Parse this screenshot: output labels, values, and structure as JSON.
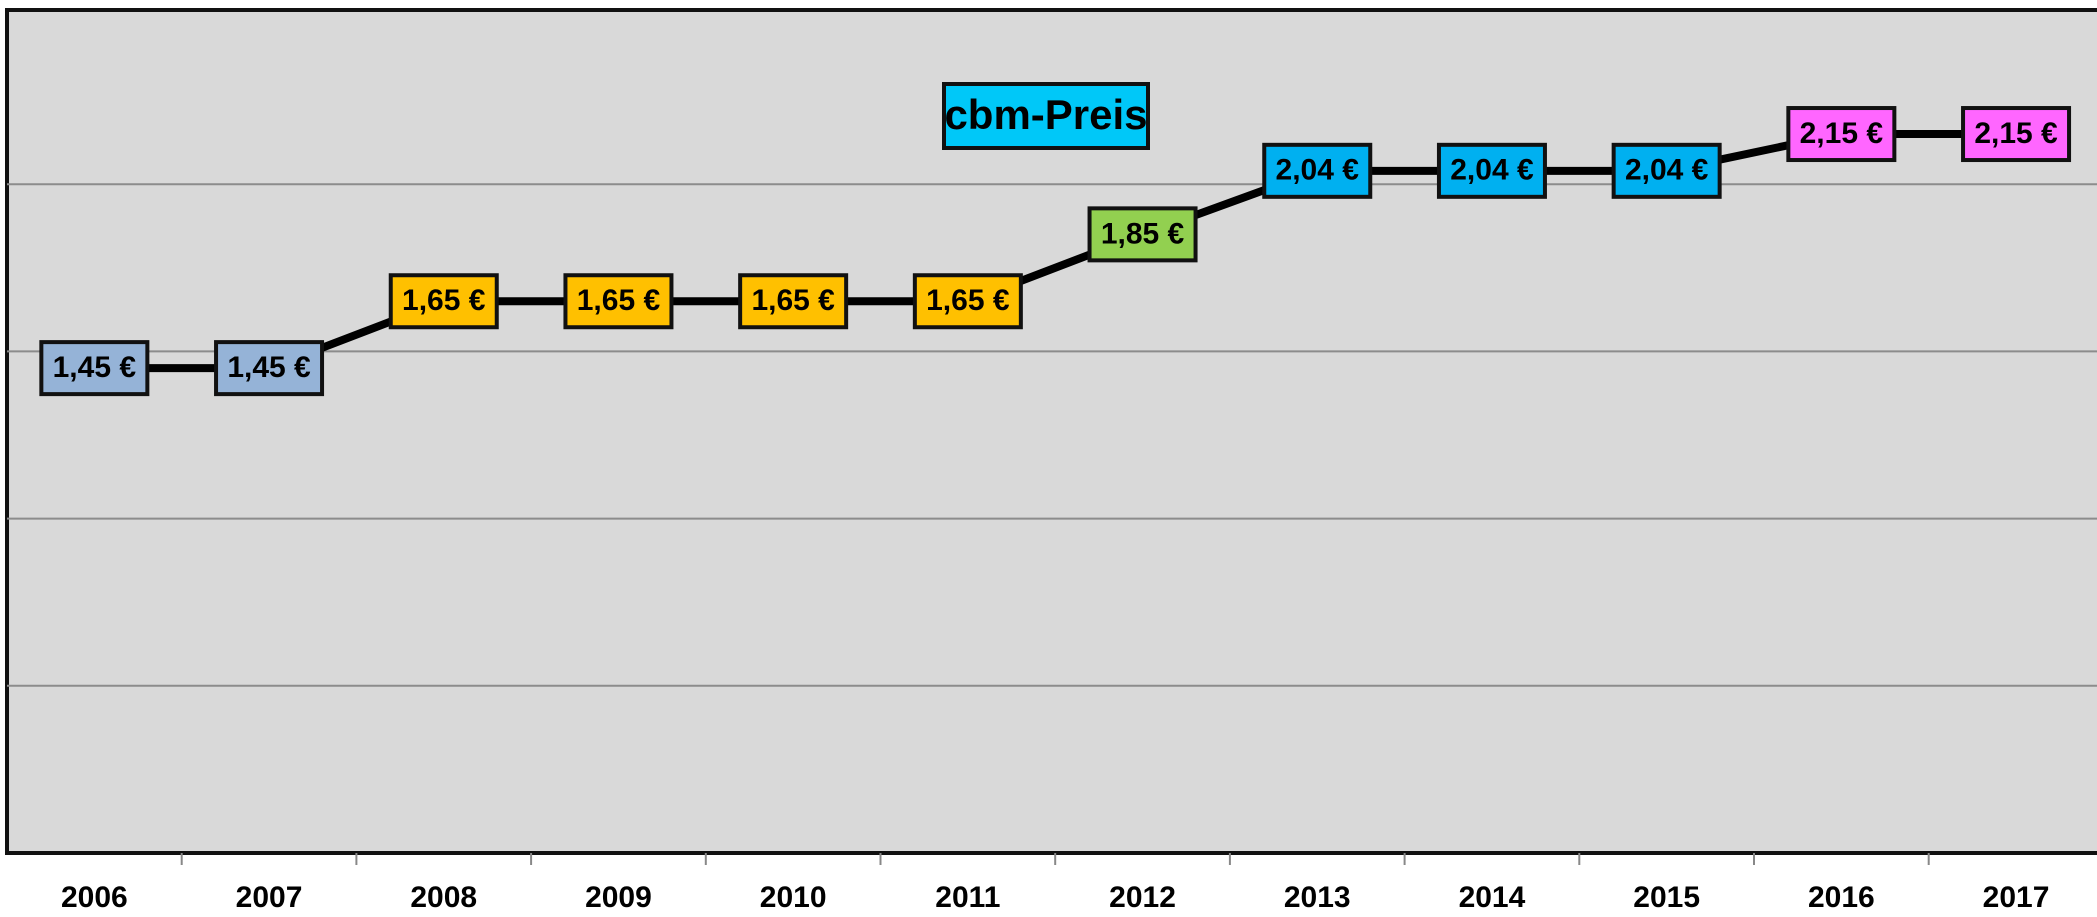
{
  "chart_data": {
    "type": "line",
    "title": "cbm-Preis",
    "title_color": "#00c8f8",
    "categories": [
      "2006",
      "2007",
      "2008",
      "2009",
      "2010",
      "2011",
      "2012",
      "2013",
      "2014",
      "2015",
      "2016",
      "2017"
    ],
    "series": [
      {
        "name": "cbm-Preis",
        "color": "#000000",
        "values": [
          1.45,
          1.45,
          1.65,
          1.65,
          1.65,
          1.65,
          1.85,
          2.04,
          2.04,
          2.04,
          2.15,
          2.15
        ],
        "value_labels": [
          "1,45 €",
          "1,45 €",
          "1,65 €",
          "1,65 €",
          "1,65 €",
          "1,65 €",
          "1,85 €",
          "2,04 €",
          "2,04 €",
          "2,04 €",
          "2,15 €",
          "2,15 €"
        ],
        "label_colors": [
          "#95b3d7",
          "#95b3d7",
          "#ffc000",
          "#ffc000",
          "#ffc000",
          "#ffc000",
          "#92d050",
          "#00b0f0",
          "#00b0f0",
          "#00b0f0",
          "#ff66ff",
          "#ff66ff"
        ]
      }
    ],
    "ylim": [
      0,
      2.5
    ],
    "yticks": [
      0,
      0.5,
      1,
      1.5,
      2
    ],
    "grid": true
  }
}
